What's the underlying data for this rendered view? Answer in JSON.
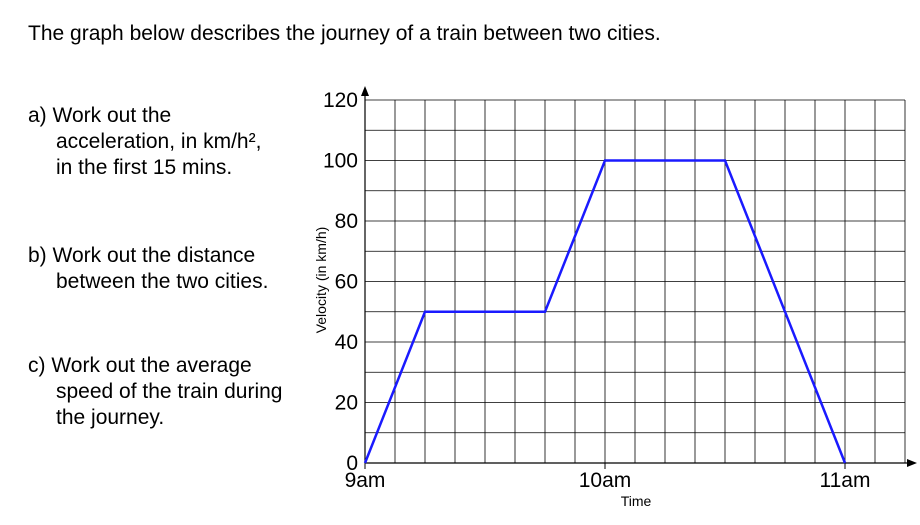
{
  "header": {
    "title": "The graph below describes the journey of a train between two cities."
  },
  "questions": [
    {
      "lines": [
        "a) Work out the",
        "acceleration, in km/h²,",
        "in the first 15 mins."
      ]
    },
    {
      "lines": [
        "b) Work out the distance",
        "between the two cities."
      ]
    },
    {
      "lines": [
        "c) Work out the average",
        "speed of the train during",
        "the journey."
      ]
    }
  ],
  "chart_data": {
    "type": "line",
    "x_label": "Time",
    "y_label": "Velocity (in km/h)",
    "x": [
      0,
      15,
      45,
      60,
      90,
      120
    ],
    "series": [
      {
        "name": "Velocity",
        "color": "#1a1aff",
        "values": [
          0,
          50,
          50,
          100,
          100,
          0
        ]
      }
    ],
    "xlim": [
      0,
      135
    ],
    "xticks": [
      {
        "value": 0,
        "label": "9am"
      },
      {
        "value": 60,
        "label": "10am"
      },
      {
        "value": 120,
        "label": "11am"
      }
    ],
    "ylim": [
      0,
      120
    ],
    "yticks": [
      0,
      20,
      40,
      60,
      80,
      100,
      120
    ],
    "grid": true
  }
}
